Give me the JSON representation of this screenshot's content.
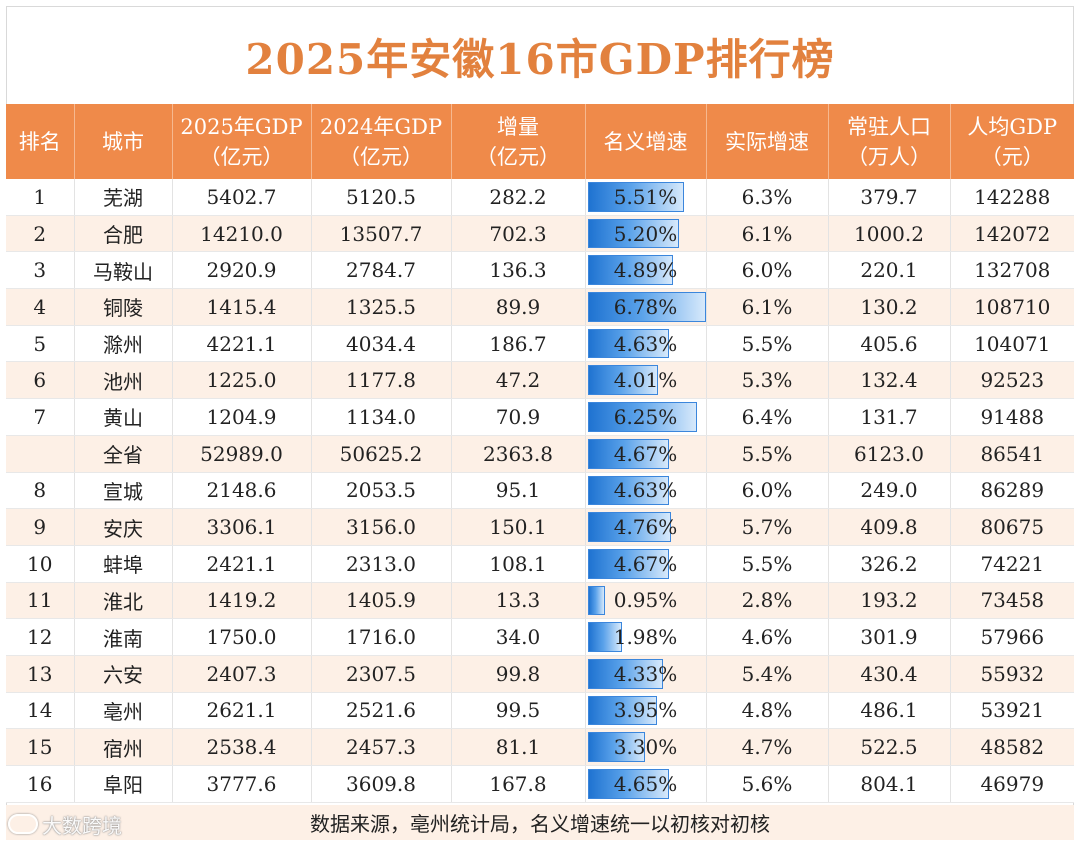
{
  "title": "2025年安徽16市GDP排行榜",
  "colors": {
    "title": "#e2813e",
    "header_bg": "#ef8a4a",
    "stripe": "#fdf0e6",
    "bar": "#1f73d1"
  },
  "headers": [
    {
      "line1": "排名",
      "line2": ""
    },
    {
      "line1": "城市",
      "line2": ""
    },
    {
      "line1": "2025年GDP",
      "line2": "（亿元）"
    },
    {
      "line1": "2024年GDP",
      "line2": "（亿元）"
    },
    {
      "line1": "增量",
      "line2": "（亿元）"
    },
    {
      "line1": "名义增速",
      "line2": ""
    },
    {
      "line1": "实际增速",
      "line2": ""
    },
    {
      "line1": "常驻人口",
      "line2": "（万人）"
    },
    {
      "line1": "人均GDP",
      "line2": "（元）"
    }
  ],
  "bar_max_percent": 6.78,
  "rows": [
    {
      "rank": "1",
      "city": "芜湖",
      "gdp2025": "5402.7",
      "gdp2024": "5120.5",
      "increase": "282.2",
      "nominal": "5.51%",
      "nominal_value": 5.51,
      "real": "6.3%",
      "population": "379.7",
      "per_capita": "142288"
    },
    {
      "rank": "2",
      "city": "合肥",
      "gdp2025": "14210.0",
      "gdp2024": "13507.7",
      "increase": "702.3",
      "nominal": "5.20%",
      "nominal_value": 5.2,
      "real": "6.1%",
      "population": "1000.2",
      "per_capita": "142072"
    },
    {
      "rank": "3",
      "city": "马鞍山",
      "gdp2025": "2920.9",
      "gdp2024": "2784.7",
      "increase": "136.3",
      "nominal": "4.89%",
      "nominal_value": 4.89,
      "real": "6.0%",
      "population": "220.1",
      "per_capita": "132708"
    },
    {
      "rank": "4",
      "city": "铜陵",
      "gdp2025": "1415.4",
      "gdp2024": "1325.5",
      "increase": "89.9",
      "nominal": "6.78%",
      "nominal_value": 6.78,
      "real": "6.1%",
      "population": "130.2",
      "per_capita": "108710"
    },
    {
      "rank": "5",
      "city": "滁州",
      "gdp2025": "4221.1",
      "gdp2024": "4034.4",
      "increase": "186.7",
      "nominal": "4.63%",
      "nominal_value": 4.63,
      "real": "5.5%",
      "population": "405.6",
      "per_capita": "104071"
    },
    {
      "rank": "6",
      "city": "池州",
      "gdp2025": "1225.0",
      "gdp2024": "1177.8",
      "increase": "47.2",
      "nominal": "4.01%",
      "nominal_value": 4.01,
      "real": "5.3%",
      "population": "132.4",
      "per_capita": "92523"
    },
    {
      "rank": "7",
      "city": "黄山",
      "gdp2025": "1204.9",
      "gdp2024": "1134.0",
      "increase": "70.9",
      "nominal": "6.25%",
      "nominal_value": 6.25,
      "real": "6.4%",
      "population": "131.7",
      "per_capita": "91488"
    },
    {
      "rank": "",
      "city": "全省",
      "gdp2025": "52989.0",
      "gdp2024": "50625.2",
      "increase": "2363.8",
      "nominal": "4.67%",
      "nominal_value": 4.67,
      "real": "5.5%",
      "population": "6123.0",
      "per_capita": "86541"
    },
    {
      "rank": "8",
      "city": "宣城",
      "gdp2025": "2148.6",
      "gdp2024": "2053.5",
      "increase": "95.1",
      "nominal": "4.63%",
      "nominal_value": 4.63,
      "real": "6.0%",
      "population": "249.0",
      "per_capita": "86289"
    },
    {
      "rank": "9",
      "city": "安庆",
      "gdp2025": "3306.1",
      "gdp2024": "3156.0",
      "increase": "150.1",
      "nominal": "4.76%",
      "nominal_value": 4.76,
      "real": "5.7%",
      "population": "409.8",
      "per_capita": "80675"
    },
    {
      "rank": "10",
      "city": "蚌埠",
      "gdp2025": "2421.1",
      "gdp2024": "2313.0",
      "increase": "108.1",
      "nominal": "4.67%",
      "nominal_value": 4.67,
      "real": "5.5%",
      "population": "326.2",
      "per_capita": "74221"
    },
    {
      "rank": "11",
      "city": "淮北",
      "gdp2025": "1419.2",
      "gdp2024": "1405.9",
      "increase": "13.3",
      "nominal": "0.95%",
      "nominal_value": 0.95,
      "real": "2.8%",
      "population": "193.2",
      "per_capita": "73458"
    },
    {
      "rank": "12",
      "city": "淮南",
      "gdp2025": "1750.0",
      "gdp2024": "1716.0",
      "increase": "34.0",
      "nominal": "1.98%",
      "nominal_value": 1.98,
      "real": "4.6%",
      "population": "301.9",
      "per_capita": "57966"
    },
    {
      "rank": "13",
      "city": "六安",
      "gdp2025": "2407.3",
      "gdp2024": "2307.5",
      "increase": "99.8",
      "nominal": "4.33%",
      "nominal_value": 4.33,
      "real": "5.4%",
      "population": "430.4",
      "per_capita": "55932"
    },
    {
      "rank": "14",
      "city": "亳州",
      "gdp2025": "2621.1",
      "gdp2024": "2521.6",
      "increase": "99.5",
      "nominal": "3.95%",
      "nominal_value": 3.95,
      "real": "4.8%",
      "population": "486.1",
      "per_capita": "53921"
    },
    {
      "rank": "15",
      "city": "宿州",
      "gdp2025": "2538.4",
      "gdp2024": "2457.3",
      "increase": "81.1",
      "nominal": "3.30%",
      "nominal_value": 3.3,
      "real": "4.7%",
      "population": "522.5",
      "per_capita": "48582"
    },
    {
      "rank": "16",
      "city": "阜阳",
      "gdp2025": "3777.6",
      "gdp2024": "3609.8",
      "increase": "167.8",
      "nominal": "4.65%",
      "nominal_value": 4.65,
      "real": "5.6%",
      "population": "804.1",
      "per_capita": "46979"
    }
  ],
  "footer": "数据来源，亳州统计局，名义增速统一以初核对初核",
  "watermark": "大数跨境"
}
